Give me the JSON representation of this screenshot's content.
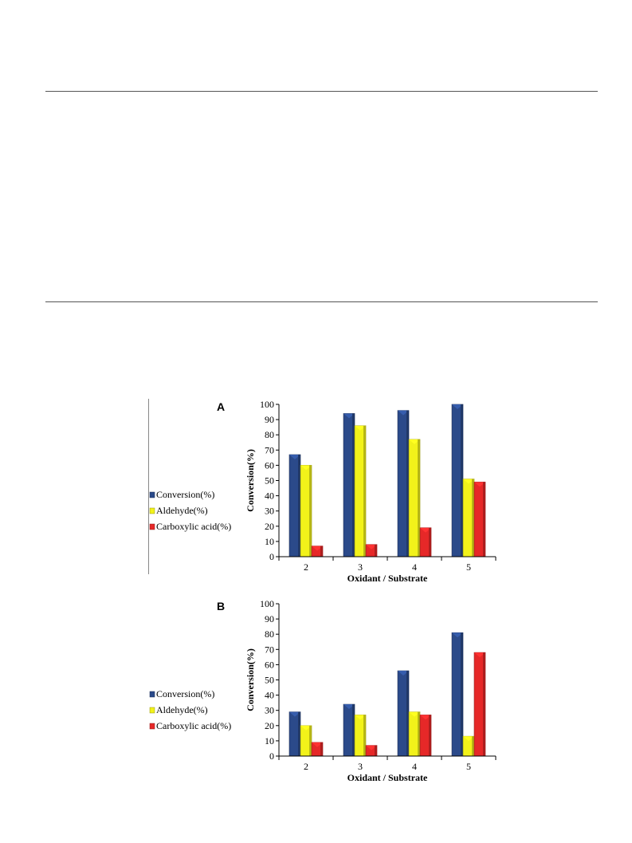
{
  "chart_data": [
    {
      "type": "bar",
      "panel": "A",
      "categories": [
        "2",
        "3",
        "4",
        "5"
      ],
      "xlabel": "Oxidant / Substrate",
      "ylabel": "Conversion(%)",
      "ylim": [
        0,
        100
      ],
      "yticks": [
        0,
        10,
        20,
        30,
        40,
        50,
        60,
        70,
        80,
        90,
        100
      ],
      "legend_position": "left",
      "grid": false,
      "series": [
        {
          "name": "Conversion(%)",
          "color": "#2b4a8a",
          "values": [
            67,
            94,
            96,
            100
          ]
        },
        {
          "name": "Aldehyde(%)",
          "color": "#f2f21a",
          "values": [
            60,
            86,
            77,
            51
          ]
        },
        {
          "name": "Carboxylic acid(%)",
          "color": "#e62828",
          "values": [
            7,
            8,
            19,
            49
          ]
        }
      ]
    },
    {
      "type": "bar",
      "panel": "B",
      "categories": [
        "2",
        "3",
        "4",
        "5"
      ],
      "xlabel": "Oxidant / Substrate",
      "ylabel": "Conversion(%)",
      "ylim": [
        0,
        100
      ],
      "yticks": [
        0,
        10,
        20,
        30,
        40,
        50,
        60,
        70,
        80,
        90,
        100
      ],
      "legend_position": "left",
      "grid": false,
      "series": [
        {
          "name": "Conversion(%)",
          "color": "#2b4a8a",
          "values": [
            29,
            34,
            56,
            81
          ]
        },
        {
          "name": "Aldehyde(%)",
          "color": "#f2f21a",
          "values": [
            20,
            27,
            29,
            13
          ]
        },
        {
          "name": "Carboxylic acid(%)",
          "color": "#e62828",
          "values": [
            9,
            7,
            27,
            68
          ]
        }
      ]
    }
  ]
}
